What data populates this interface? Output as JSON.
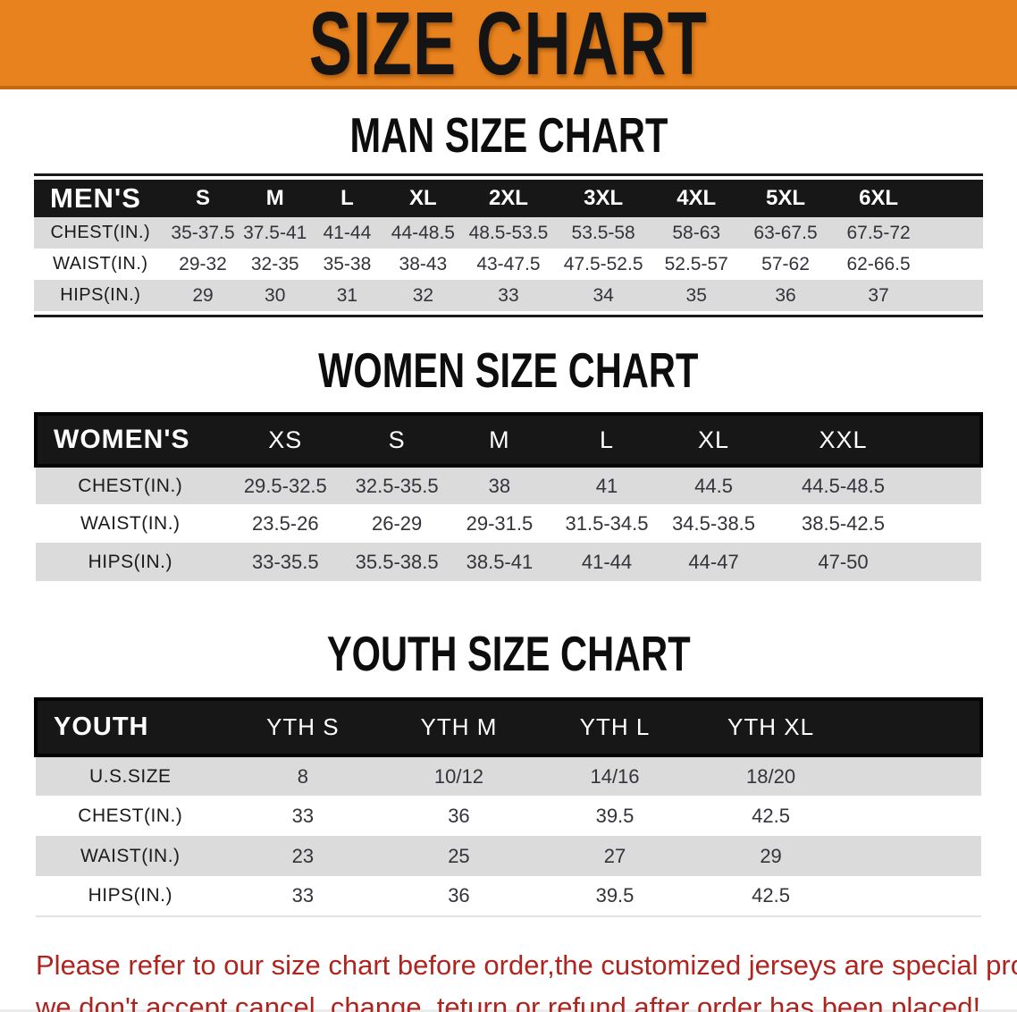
{
  "banner": {
    "title": "SIZE CHART"
  },
  "sections": [
    {
      "heading": "MAN SIZE CHART",
      "table": {
        "header_label": "MEN'S",
        "columns": [
          "S",
          "M",
          "L",
          "XL",
          "2XL",
          "3XL",
          "4XL",
          "5XL",
          "6XL"
        ],
        "rows": [
          {
            "label": "CHEST(IN.)",
            "values": [
              "35-37.5",
              "37.5-41",
              "41-44",
              "44-48.5",
              "48.5-53.5",
              "53.5-58",
              "58-63",
              "63-67.5",
              "67.5-72"
            ]
          },
          {
            "label": "WAIST(IN.)",
            "values": [
              "29-32",
              "32-35",
              "35-38",
              "38-43",
              "43-47.5",
              "47.5-52.5",
              "52.5-57",
              "57-62",
              "62-66.5"
            ]
          },
          {
            "label": "HIPS(IN.)",
            "values": [
              "29",
              "30",
              "31",
              "32",
              "33",
              "34",
              "35",
              "36",
              "37"
            ]
          }
        ]
      }
    },
    {
      "heading": "WOMEN SIZE CHART",
      "table": {
        "header_label": "WOMEN'S",
        "columns": [
          "XS",
          "S",
          "M",
          "L",
          "XL",
          "XXL"
        ],
        "rows": [
          {
            "label": "CHEST(IN.)",
            "values": [
              "29.5-32.5",
              "32.5-35.5",
              "38",
              "41",
              "44.5",
              "44.5-48.5"
            ]
          },
          {
            "label": "WAIST(IN.)",
            "values": [
              "23.5-26",
              "26-29",
              "29-31.5",
              "31.5-34.5",
              "34.5-38.5",
              "38.5-42.5"
            ]
          },
          {
            "label": "HIPS(IN.)",
            "values": [
              "33-35.5",
              "35.5-38.5",
              "38.5-41",
              "41-44",
              "44-47",
              "47-50"
            ]
          }
        ]
      }
    },
    {
      "heading": "YOUTH SIZE CHART",
      "table": {
        "header_label": "YOUTH",
        "columns": [
          "YTH S",
          "YTH M",
          "YTH L",
          "YTH XL"
        ],
        "rows": [
          {
            "label": "U.S.SIZE",
            "values": [
              "8",
              "10/12",
              "14/16",
              "18/20"
            ]
          },
          {
            "label": "CHEST(IN.)",
            "values": [
              "33",
              "36",
              "39.5",
              "42.5"
            ]
          },
          {
            "label": "WAIST(IN.)",
            "values": [
              "23",
              "25",
              "27",
              "29"
            ]
          },
          {
            "label": "HIPS(IN.)",
            "values": [
              "33",
              "36",
              "39.5",
              "42.5"
            ]
          }
        ]
      }
    }
  ],
  "footer_note": {
    "line1": "Please refer to our size chart before order,the customized jerseys are special products,",
    "line2": "we don't accept cancel, change, teturn or refund after order has been placed!"
  },
  "colors": {
    "banner_orange": "#E8821E",
    "banner_edge": "#C4690F",
    "header_black": "#171717",
    "stripe_gray": "#DBDBDB",
    "note_red": "#AE2520"
  }
}
